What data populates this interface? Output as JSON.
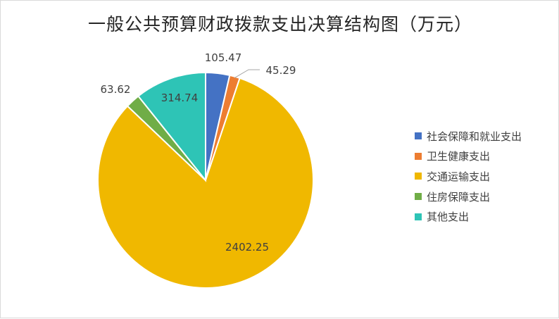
{
  "chart_data": {
    "type": "pie",
    "title": "一般公共预算财政拨款支出决算结构图（万元）",
    "categories": [
      "社会保障和就业支出",
      "卫生健康支出",
      "交通运输支出",
      "住房保障支出",
      "其他支出"
    ],
    "values": [
      105.47,
      45.29,
      2402.25,
      63.62,
      314.74
    ],
    "data_labels": [
      "105.47",
      "45.29",
      "2402.25",
      "63.62",
      "314.74"
    ],
    "colors": [
      "#4472c4",
      "#ed7d31",
      "#f0b800",
      "#70ad47",
      "#2ec4b6"
    ],
    "start_angle_deg": 0,
    "direction": "clockwise",
    "legend_position": "right"
  }
}
